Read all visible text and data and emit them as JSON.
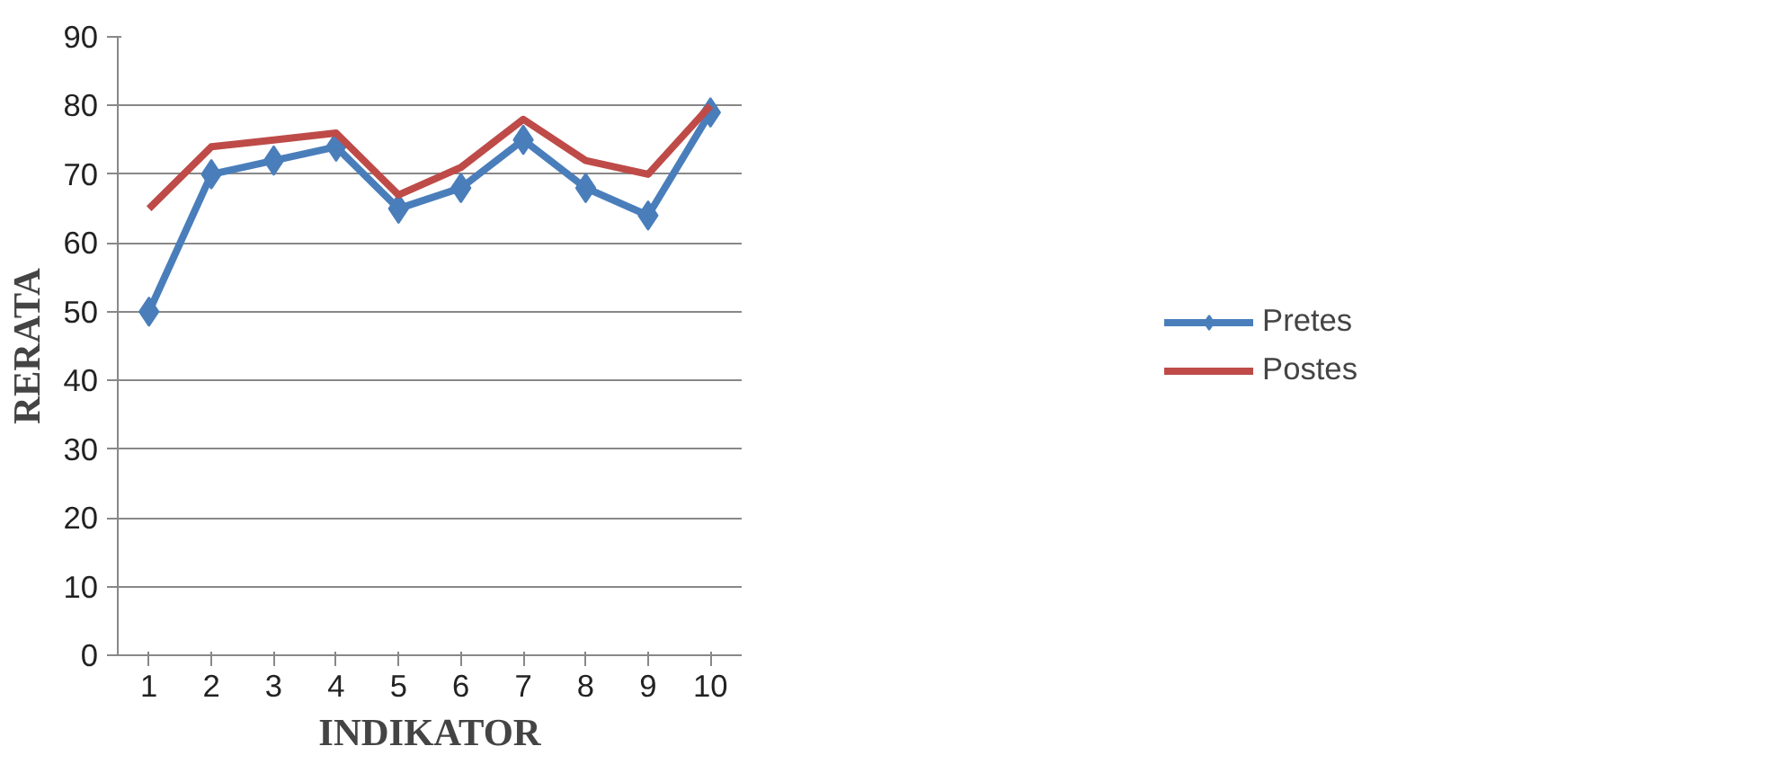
{
  "chart_data": {
    "type": "line",
    "xlabel": "INDIKATOR",
    "ylabel": "RERATA",
    "categories": [
      "1",
      "2",
      "3",
      "4",
      "5",
      "6",
      "7",
      "8",
      "9",
      "10"
    ],
    "series": [
      {
        "name": "Pretes",
        "color": "#4a7ebb",
        "values": [
          50,
          70,
          72,
          74,
          65,
          68,
          75,
          68,
          64,
          79
        ],
        "marker": "diamond"
      },
      {
        "name": "Postes",
        "color": "#be4b48",
        "values": [
          65,
          74,
          75,
          76,
          67,
          71,
          78,
          72,
          70,
          80
        ],
        "marker": "none"
      }
    ],
    "ylim": [
      0,
      90
    ],
    "yticks": [
      0,
      10,
      20,
      30,
      40,
      50,
      60,
      70,
      80,
      90
    ],
    "grid": "y",
    "legend": "right"
  }
}
